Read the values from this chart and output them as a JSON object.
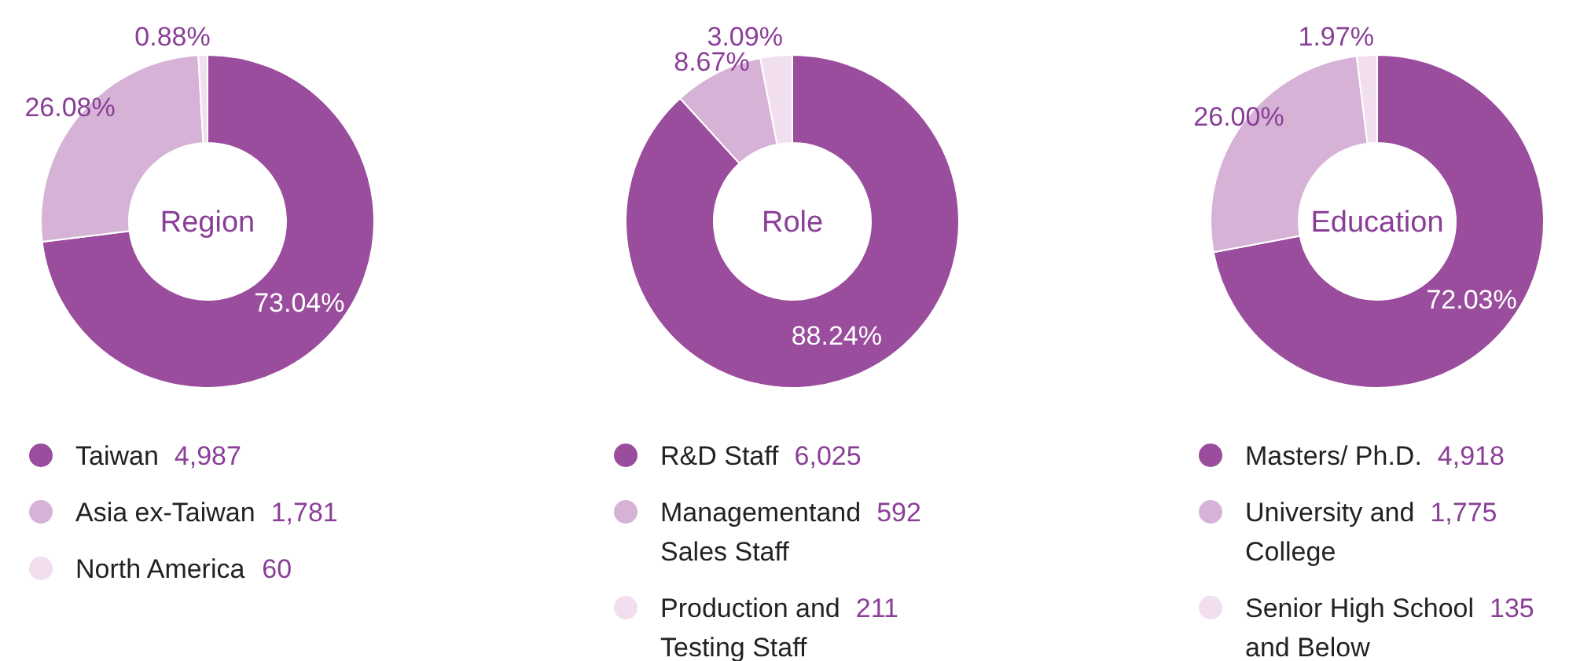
{
  "chart_data": [
    {
      "type": "donut",
      "title": "Region",
      "categories": [
        "Taiwan",
        "Asia ex-Taiwan",
        "North America"
      ],
      "values": [
        73.04,
        26.08,
        0.88
      ],
      "colors": [
        "#9a4d9c",
        "#d6b3d6",
        "#f1deef"
      ],
      "value_labels": [
        "73.04%",
        "26.08%",
        "0.88%"
      ],
      "annotations": [
        "4,987",
        "1,781",
        "60"
      ],
      "legend": "bottom"
    },
    {
      "type": "donut",
      "title": "Role",
      "categories": [
        "R&D Staff",
        "Managementand Sales Staff",
        "Production and Testing Staff"
      ],
      "values": [
        88.24,
        8.67,
        3.09
      ],
      "colors": [
        "#9a4d9c",
        "#d6b3d6",
        "#f1deef"
      ],
      "value_labels": [
        "88.24%",
        "8.67%",
        "3.09%"
      ],
      "annotations": [
        "6,025",
        "592",
        "211"
      ],
      "legend": "bottom"
    },
    {
      "type": "donut",
      "title": "Education",
      "categories": [
        "Masters/ Ph.D.",
        "University and College",
        "Senior High School and Below"
      ],
      "values": [
        72.03,
        26.0,
        1.97
      ],
      "colors": [
        "#9a4d9c",
        "#d6b3d6",
        "#f1deef"
      ],
      "value_labels": [
        "72.03%",
        "26.00%",
        "1.97%"
      ],
      "annotations": [
        "4,918",
        "1,775",
        "135"
      ],
      "legend": "bottom"
    }
  ]
}
